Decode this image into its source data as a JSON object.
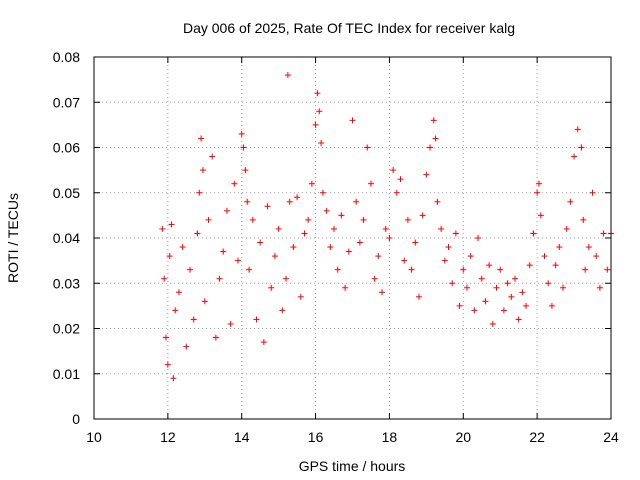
{
  "chart_data": {
    "type": "scatter",
    "title": "Day 006 of 2025, Rate Of TEC Index for receiver kalg",
    "xlabel": "GPS time / hours",
    "ylabel": "ROTI / TECUs",
    "xlim": [
      10,
      24
    ],
    "ylim": [
      0,
      0.08
    ],
    "x_ticks": [
      "10",
      "12",
      "14",
      "16",
      "18",
      "20",
      "22",
      "24"
    ],
    "y_ticks": [
      "0",
      "0.01",
      "0.02",
      "0.03",
      "0.04",
      "0.05",
      "0.06",
      "0.07",
      "0.08"
    ],
    "grid": true,
    "marker": "plus",
    "color": "#ff0000",
    "series": [
      {
        "x": [
          11.85,
          11.9,
          11.95,
          12.0,
          12.05,
          12.1,
          12.15,
          12.2,
          12.3,
          12.4,
          12.5,
          12.6,
          12.7,
          12.8,
          12.85,
          12.9,
          12.95,
          13.0,
          13.1,
          13.2,
          13.3,
          13.4,
          13.5,
          13.6,
          13.7,
          13.8,
          13.9,
          14.0,
          14.05,
          14.1,
          14.15,
          14.2,
          14.3,
          14.4,
          14.5,
          14.6,
          14.7,
          14.8,
          14.9,
          15.0,
          15.1,
          15.2,
          15.25,
          15.3,
          15.4,
          15.5,
          15.6,
          15.7,
          15.8,
          15.9,
          16.0,
          16.05,
          16.1,
          16.15,
          16.2,
          16.3,
          16.4,
          16.5,
          16.6,
          16.7,
          16.8,
          16.9,
          17.0,
          17.1,
          17.2,
          17.3,
          17.4,
          17.5,
          17.6,
          17.7,
          17.8,
          17.9,
          18.0,
          18.1,
          18.2,
          18.3,
          18.4,
          18.5,
          18.6,
          18.7,
          18.8,
          18.9,
          19.0,
          19.1,
          19.2,
          19.25,
          19.3,
          19.4,
          19.5,
          19.6,
          19.7,
          19.8,
          19.9,
          20.0,
          20.1,
          20.2,
          20.3,
          20.4,
          20.5,
          20.6,
          20.7,
          20.8,
          20.9,
          21.0,
          21.1,
          21.2,
          21.3,
          21.4,
          21.5,
          21.6,
          21.7,
          21.8,
          21.9,
          22.0,
          22.05,
          22.1,
          22.2,
          22.3,
          22.4,
          22.5,
          22.6,
          22.7,
          22.8,
          22.9,
          23.0,
          23.1,
          23.2,
          23.25,
          23.3,
          23.4,
          23.5,
          23.6,
          23.7,
          23.8,
          23.9,
          24.0
        ],
        "y": [
          0.042,
          0.031,
          0.018,
          0.012,
          0.036,
          0.043,
          0.009,
          0.024,
          0.028,
          0.038,
          0.016,
          0.033,
          0.022,
          0.041,
          0.05,
          0.062,
          0.055,
          0.026,
          0.044,
          0.058,
          0.018,
          0.031,
          0.037,
          0.046,
          0.021,
          0.052,
          0.035,
          0.063,
          0.06,
          0.055,
          0.048,
          0.033,
          0.044,
          0.022,
          0.039,
          0.017,
          0.047,
          0.029,
          0.036,
          0.042,
          0.024,
          0.031,
          0.076,
          0.048,
          0.038,
          0.049,
          0.027,
          0.041,
          0.044,
          0.052,
          0.065,
          0.072,
          0.068,
          0.061,
          0.05,
          0.046,
          0.038,
          0.042,
          0.033,
          0.045,
          0.029,
          0.037,
          0.066,
          0.048,
          0.039,
          0.044,
          0.06,
          0.052,
          0.031,
          0.036,
          0.028,
          0.042,
          0.04,
          0.055,
          0.05,
          0.053,
          0.035,
          0.044,
          0.033,
          0.039,
          0.027,
          0.045,
          0.054,
          0.06,
          0.066,
          0.062,
          0.048,
          0.042,
          0.035,
          0.038,
          0.03,
          0.041,
          0.025,
          0.033,
          0.029,
          0.036,
          0.024,
          0.04,
          0.031,
          0.026,
          0.034,
          0.021,
          0.029,
          0.033,
          0.024,
          0.03,
          0.027,
          0.031,
          0.022,
          0.028,
          0.025,
          0.034,
          0.041,
          0.05,
          0.052,
          0.045,
          0.036,
          0.03,
          0.025,
          0.034,
          0.038,
          0.029,
          0.042,
          0.048,
          0.058,
          0.064,
          0.06,
          0.044,
          0.033,
          0.038,
          0.05,
          0.036,
          0.029,
          0.041,
          0.033,
          0.041
        ]
      }
    ]
  }
}
